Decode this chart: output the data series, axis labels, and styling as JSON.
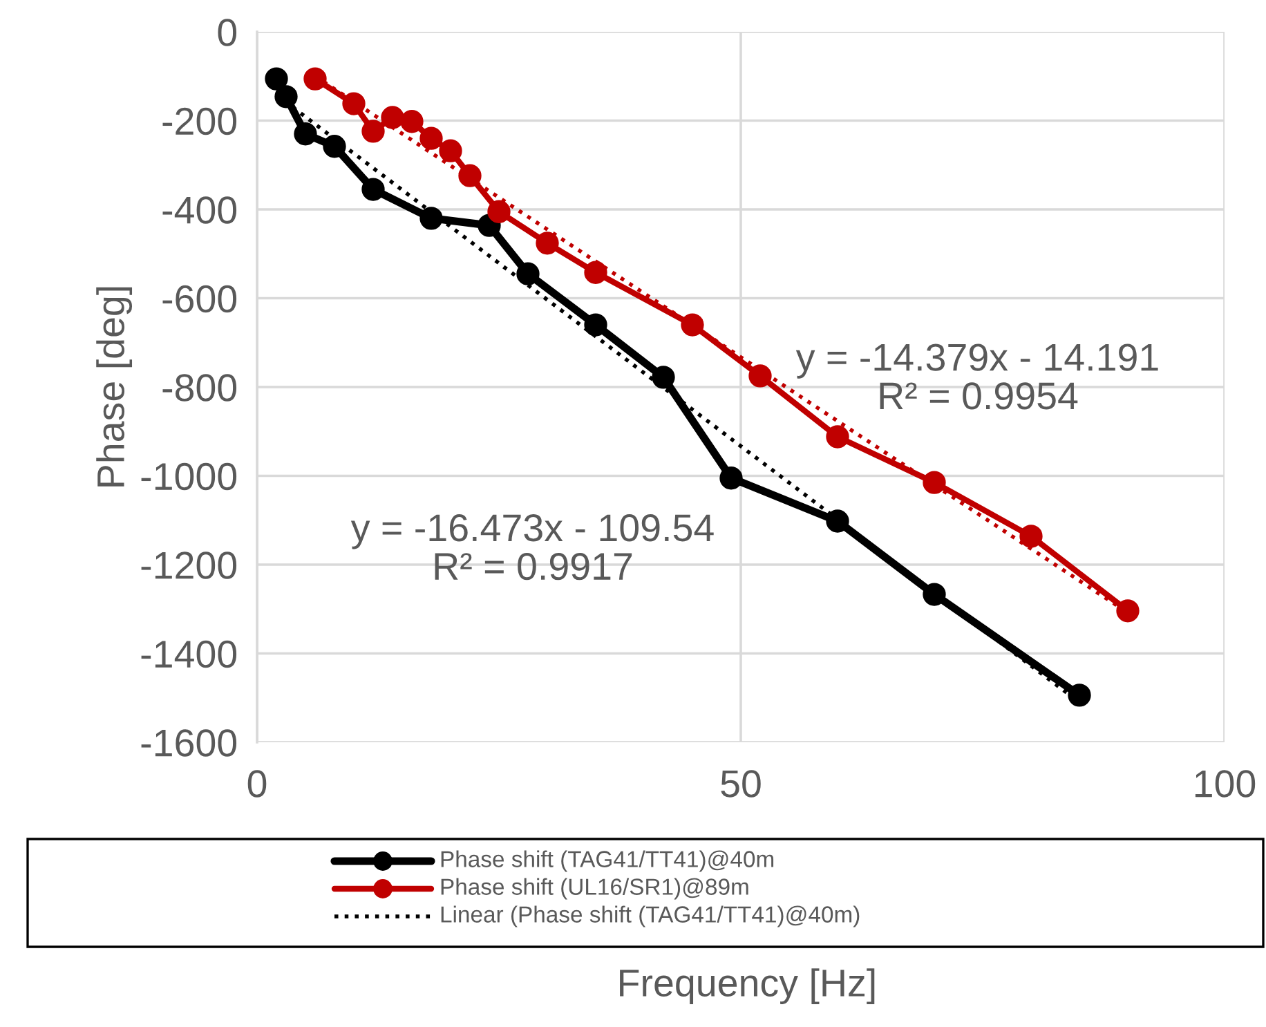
{
  "chart_data": {
    "type": "line",
    "xlabel": "Frequency [Hz]",
    "ylabel": "Phase [deg]",
    "series": [
      {
        "name": "Phase shift (TAG41/TT41)@40m",
        "color": "#000000",
        "marker": "circle",
        "line_style": "solid",
        "x": [
          2,
          3,
          5,
          8,
          12,
          18,
          24,
          28,
          35,
          42,
          49,
          60,
          70,
          85
        ],
        "values": [
          -106,
          -146,
          -230,
          -258,
          -355,
          -420,
          -436,
          -545,
          -660,
          -778,
          -1005,
          -1102,
          -1267,
          -1494
        ]
      },
      {
        "name": "Phase shift (UL16/SR1)@89m",
        "color": "#c00000",
        "marker": "circle",
        "line_style": "solid",
        "x": [
          6,
          10,
          12,
          14,
          16,
          18,
          20,
          22,
          25,
          30,
          35,
          45,
          52,
          60,
          70,
          80,
          90
        ],
        "values": [
          -106,
          -162,
          -224,
          -193,
          -202,
          -240,
          -268,
          -324,
          -405,
          -476,
          -542,
          -660,
          -775,
          -912,
          -1015,
          -1136,
          -1304
        ]
      },
      {
        "name": "Linear (Phase shift (TAG41/TT41)@40m)",
        "color": "#000000",
        "marker": "none",
        "line_style": "dotted",
        "x": [
          2,
          85
        ],
        "values": [
          -142,
          -1510
        ]
      },
      {
        "color": "#c00000",
        "marker": "none",
        "line_style": "dotted",
        "x": [
          6,
          90
        ],
        "values": [
          -100,
          -1308
        ]
      }
    ],
    "xlim": [
      0,
      100
    ],
    "xticks": [
      0,
      50,
      100
    ],
    "ylim": [
      -1600,
      0
    ],
    "yticks": [
      -1600,
      -1400,
      -1200,
      -1000,
      -800,
      -600,
      -400,
      -200,
      0
    ],
    "grid": true,
    "legend": "bottom",
    "annotations": [
      "y = -14.379x - 14.191\nR² = 0.9954",
      "y = -16.473x - 109.54\nR² = 0.9917"
    ]
  }
}
